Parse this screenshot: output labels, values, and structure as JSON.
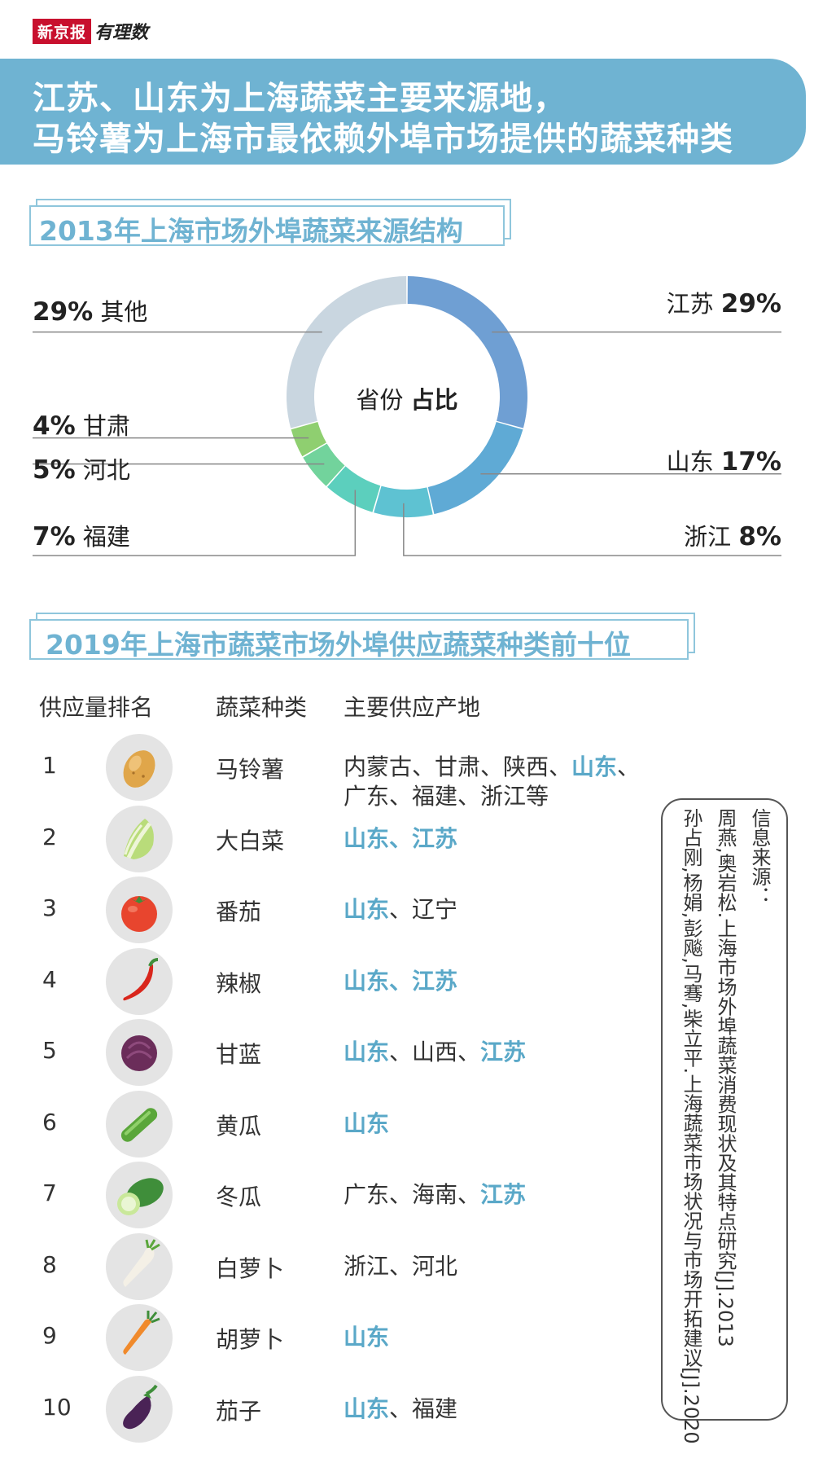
{
  "brand": {
    "name": "新京报",
    "column": "有理数"
  },
  "headline": {
    "line1": "江苏、山东为上海蔬菜主要来源地，",
    "line2": "马铃薯为上海市最依赖外埠市场提供的蔬菜种类"
  },
  "section1_title": "2013年上海市场外埠蔬菜来源结构",
  "section2_title": "2019年上海市蔬菜市场外埠供应蔬菜种类前十位",
  "donut_center": {
    "left": "省份",
    "right": "占比"
  },
  "chart_data": {
    "type": "pie",
    "title": "2013年上海市场外埠蔬菜来源结构",
    "categories": [
      "江苏",
      "山东",
      "浙江",
      "福建",
      "河北",
      "甘肃",
      "其他"
    ],
    "values": [
      29,
      17,
      8,
      7,
      5,
      4,
      29
    ],
    "display": [
      "29%",
      "17%",
      "8%",
      "7%",
      "5%",
      "4%",
      "29%"
    ],
    "colors": [
      "#6f9fd3",
      "#5faad5",
      "#5ec2d2",
      "#5ccfbd",
      "#72d39c",
      "#8fcf70",
      "#c9d6e0"
    ]
  },
  "table": {
    "headers": [
      "供应量排名",
      "蔬菜种类",
      "主要供应产地"
    ],
    "rows": [
      {
        "rank": "1",
        "veg": "马铃薯",
        "icon": "potato-icon",
        "lines": [
          [
            {
              "t": "内蒙古、甘肃、陕西、"
            },
            {
              "t": "山东",
              "hl": true
            },
            {
              "t": "、"
            }
          ],
          [
            {
              "t": "广东、福建、浙江等"
            }
          ]
        ]
      },
      {
        "rank": "2",
        "veg": "大白菜",
        "icon": "cabbage-icon",
        "lines": [
          [
            {
              "t": "山东、江苏",
              "hl": true
            }
          ]
        ]
      },
      {
        "rank": "3",
        "veg": "番茄",
        "icon": "tomato-icon",
        "lines": [
          [
            {
              "t": "山东",
              "hl": true
            },
            {
              "t": "、辽宁"
            }
          ]
        ]
      },
      {
        "rank": "4",
        "veg": "辣椒",
        "icon": "chili-icon",
        "lines": [
          [
            {
              "t": "山东、江苏",
              "hl": true
            }
          ]
        ]
      },
      {
        "rank": "5",
        "veg": "甘蓝",
        "icon": "red-cabbage-icon",
        "lines": [
          [
            {
              "t": "山东",
              "hl": true
            },
            {
              "t": "、山西、"
            },
            {
              "t": "江苏",
              "hl": true
            }
          ]
        ]
      },
      {
        "rank": "6",
        "veg": "黄瓜",
        "icon": "cucumber-icon",
        "lines": [
          [
            {
              "t": "山东",
              "hl": true
            }
          ]
        ]
      },
      {
        "rank": "7",
        "veg": "冬瓜",
        "icon": "wax-gourd-icon",
        "lines": [
          [
            {
              "t": "广东、海南、"
            },
            {
              "t": "江苏",
              "hl": true
            }
          ]
        ]
      },
      {
        "rank": "8",
        "veg": "白萝卜",
        "icon": "radish-icon",
        "lines": [
          [
            {
              "t": "浙江、河北"
            }
          ]
        ]
      },
      {
        "rank": "9",
        "veg": "胡萝卜",
        "icon": "carrot-icon",
        "lines": [
          [
            {
              "t": "山东",
              "hl": true
            }
          ]
        ]
      },
      {
        "rank": "10",
        "veg": "茄子",
        "icon": "eggplant-icon",
        "lines": [
          [
            {
              "t": "山东",
              "hl": true
            },
            {
              "t": "、福建"
            }
          ]
        ]
      }
    ]
  },
  "source": {
    "label": "信息来源：",
    "ref1": "周燕,奥岩松.上海市场外埠蔬菜消费现状及其特点研究[J].2013",
    "ref2": "孙占刚,杨娟,彭飚,马骞,柴立平.上海蔬菜市场状况与市场开拓建议[J].2020"
  }
}
